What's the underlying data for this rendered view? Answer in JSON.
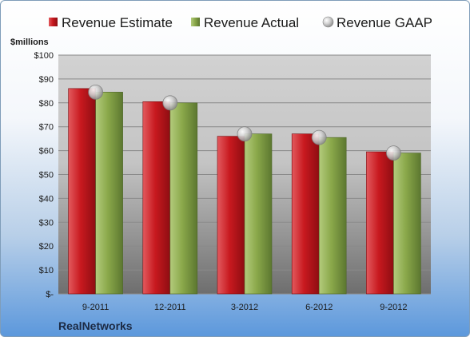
{
  "chart_data": {
    "type": "bar",
    "company": "RealNetworks",
    "unit_label": "$millions",
    "categories": [
      "9-2011",
      "12-2011",
      "3-2012",
      "6-2012",
      "9-2012"
    ],
    "series": [
      {
        "name": "Revenue Estimate",
        "kind": "bar",
        "color": "#c8191f",
        "values": [
          86,
          80.5,
          66,
          67,
          59.5
        ]
      },
      {
        "name": "Revenue Actual",
        "kind": "bar",
        "color": "#8aa84a",
        "values": [
          84.5,
          80,
          67,
          65.5,
          59
        ]
      },
      {
        "name": "Revenue GAAP",
        "kind": "marker",
        "color": "#c0c0c0",
        "values": [
          84.5,
          80,
          67,
          65.5,
          59
        ]
      }
    ],
    "y_ticks": [
      0,
      10,
      20,
      30,
      40,
      50,
      60,
      70,
      80,
      90,
      100
    ],
    "y_tick_labels": [
      "$-",
      "$10",
      "$20",
      "$30",
      "$40",
      "$50",
      "$60",
      "$70",
      "$80",
      "$90",
      "$100"
    ],
    "ylim": [
      0,
      100
    ],
    "legend_position": "top",
    "grid": true
  }
}
